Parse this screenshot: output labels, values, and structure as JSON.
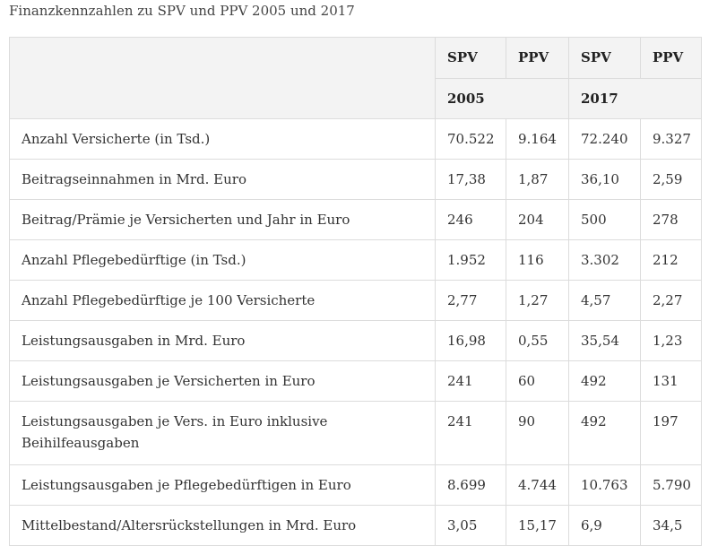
{
  "caption": "Finanzkennzahlen zu SPV und PPV 2005 und 2017",
  "header": {
    "row1": [
      "SPV",
      "PPV",
      "SPV",
      "PPV"
    ],
    "year1": "2005",
    "year2": "2017"
  },
  "rows": [
    {
      "label": "Anzahl Versicherte (in Tsd.)",
      "values": [
        "70.522",
        "9.164",
        "72.240",
        "9.327"
      ]
    },
    {
      "label": "Beitragseinnahmen in Mrd. Euro",
      "values": [
        "17,38",
        "1,87",
        "36,10",
        "2,59"
      ]
    },
    {
      "label": "Beitrag/Prämie je Versicherten und Jahr in Euro",
      "values": [
        "246",
        "204",
        "500",
        "278"
      ]
    },
    {
      "label": "Anzahl Pflegebedürftige (in Tsd.)",
      "values": [
        "1.952",
        "116",
        "3.302",
        "212"
      ]
    },
    {
      "label": "Anzahl Pflegebedürftige je 100 Versicherte",
      "values": [
        "2,77",
        "1,27",
        "4,57",
        "2,27"
      ]
    },
    {
      "label": "Leistungsausgaben in Mrd. Euro",
      "values": [
        "16,98",
        "0,55",
        "35,54",
        "1,23"
      ]
    },
    {
      "label": "Leistungsausgaben je Versicherten in Euro",
      "values": [
        "241",
        "60",
        "492",
        "131"
      ]
    },
    {
      "label": "Leistungsausgaben je Vers. in Euro inklusive Beihilfeausgaben",
      "values": [
        "241",
        "90",
        "492",
        "197"
      ]
    },
    {
      "label": "Leistungsausgaben je Pflegebedürftigen in Euro",
      "values": [
        "8.699",
        "4.744",
        "10.763",
        "5.790"
      ]
    },
    {
      "label": "Mittelbestand/Altersrückstellungen in Mrd. Euro",
      "values": [
        "3,05",
        "15,17",
        "6,9",
        "34,5"
      ]
    }
  ]
}
